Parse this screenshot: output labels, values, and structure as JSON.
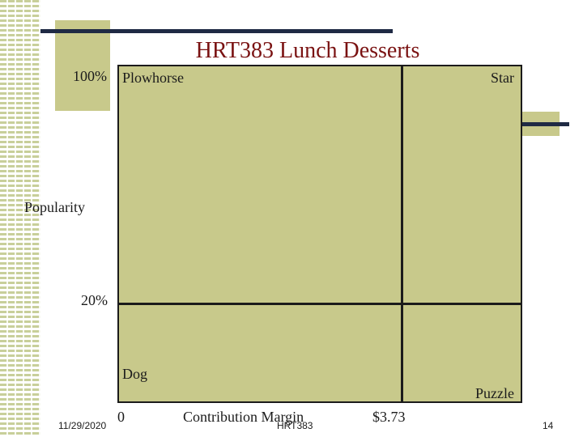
{
  "slide": {
    "title": "HRT383 Lunch Desserts",
    "date": "11/29/2020",
    "footer_text": "HRT383",
    "page_number": "14"
  },
  "matrix": {
    "y_axis_label": "Popularity",
    "y_top_label": "100%",
    "y_mid_label": "20%",
    "x_axis_label": "Contribution Margin",
    "x_min_label": "0",
    "x_mid_label": "$3.73",
    "quadrants": {
      "top_left": "Plowhorse",
      "top_right": "Star",
      "bottom_left": "Dog",
      "bottom_right": "Puzzle"
    },
    "colors": {
      "fill": "#c8c98b",
      "lines": "#1b1b1b",
      "title": "#7a1212"
    }
  }
}
